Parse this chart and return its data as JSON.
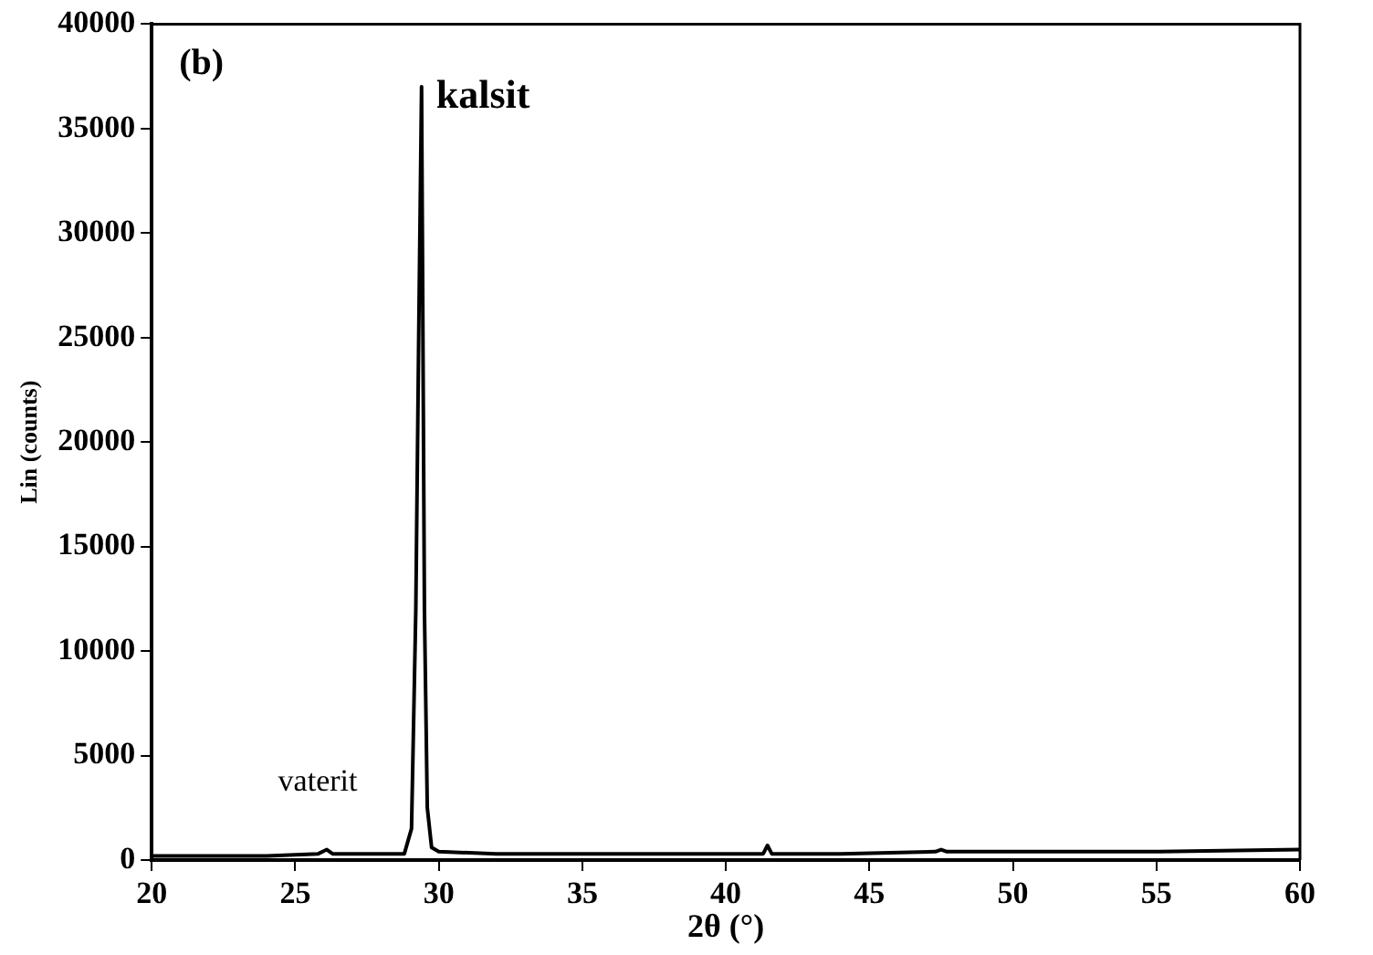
{
  "chart_data": {
    "type": "line",
    "xlabel": "2θ (°)",
    "ylabel": "Lin (counts)",
    "annotations": [
      "(b)",
      {
        "text": "kalsit",
        "x": 29.4,
        "y": 37000
      },
      {
        "text": "vaterit",
        "x": 26.1,
        "y": 500
      }
    ],
    "x": [
      20,
      22,
      24,
      25.8,
      26.1,
      26.3,
      27,
      28.8,
      29.05,
      29.2,
      29.3,
      29.4,
      29.5,
      29.6,
      29.75,
      30,
      32,
      35,
      38,
      41.3,
      41.45,
      41.6,
      44,
      47.3,
      47.5,
      47.7,
      50,
      55,
      60
    ],
    "series": [
      {
        "color": "#000000",
        "values": [
          200,
          200,
          200,
          300,
          500,
          300,
          300,
          300,
          1500,
          12000,
          25000,
          37000,
          12000,
          2500,
          600,
          400,
          300,
          300,
          300,
          300,
          700,
          300,
          300,
          400,
          500,
          400,
          400,
          400,
          500
        ]
      }
    ],
    "xlim": [
      20,
      60
    ],
    "xticks": [
      20,
      25,
      30,
      35,
      40,
      45,
      50,
      55,
      60
    ],
    "ylim": [
      0,
      40000
    ],
    "yticks": [
      0,
      5000,
      10000,
      15000,
      20000,
      25000,
      30000,
      35000,
      40000
    ],
    "grid": false,
    "legend": false,
    "marker": "none",
    "line_style": "solid"
  }
}
